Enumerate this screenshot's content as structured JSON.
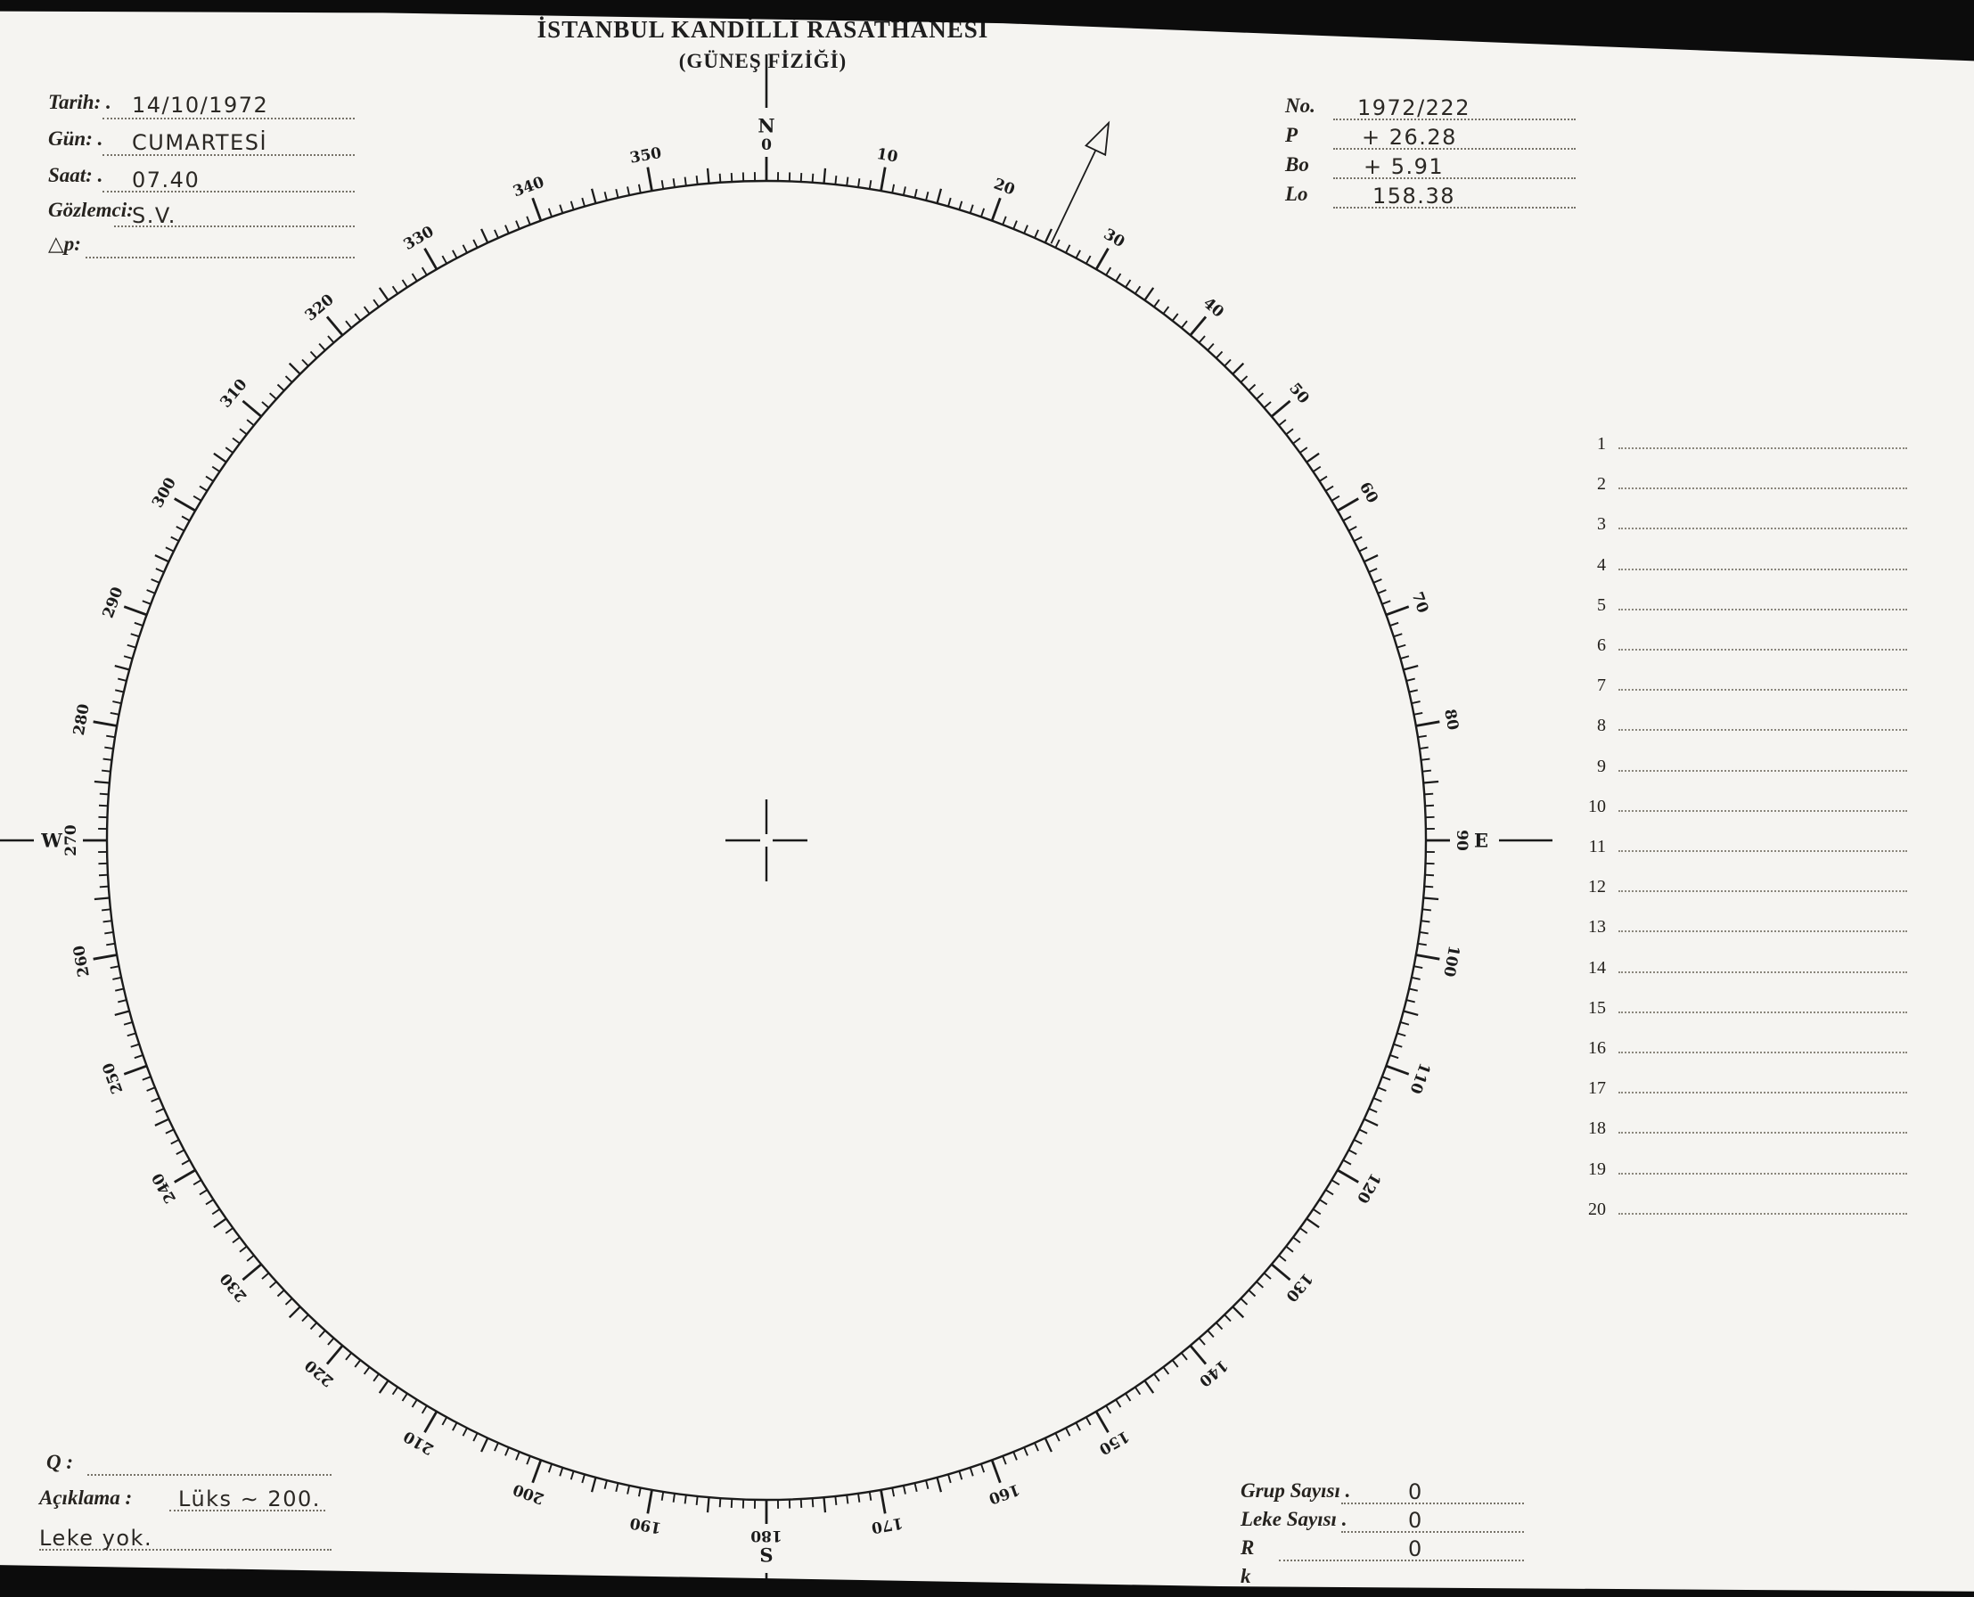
{
  "header": {
    "title": "İSTANBUL KANDİLLİ RASATHANESİ",
    "subtitle": "(GÜNEŞ FİZİĞİ)"
  },
  "fields_left": [
    {
      "label": "Tarih: .",
      "value": "14/10/1972"
    },
    {
      "label": "Gün: .",
      "value": "CUMARTESİ"
    },
    {
      "label": "Saat: .",
      "value": "07.40"
    },
    {
      "label": "Gözlemci:",
      "value": "S.V."
    },
    {
      "label": "△p:",
      "value": ""
    }
  ],
  "fields_right": [
    {
      "label": "No.",
      "value": "1972/222"
    },
    {
      "label": "P",
      "value": "+ 26.28"
    },
    {
      "label": "Bo",
      "value": "+  5.91"
    },
    {
      "label": "Lo",
      "value": "158.38"
    }
  ],
  "spot_list": {
    "numbers": [
      "1",
      "2",
      "3",
      "4",
      "5",
      "6",
      "7",
      "8",
      "9",
      "10",
      "11",
      "12",
      "13",
      "14",
      "15",
      "16",
      "17",
      "18",
      "19",
      "20"
    ]
  },
  "bottom_left": {
    "q_label": "Q :",
    "aciklama_label": "Açıklama :",
    "aciklama_value": "Lüks ∼ 200.",
    "note_value": "Leke yok."
  },
  "bottom_right": [
    {
      "label": "Grup Sayısı .",
      "value": "0"
    },
    {
      "label": "Leke Sayısı .",
      "value": "0"
    },
    {
      "label": "R",
      "value": "0"
    },
    {
      "label": "k",
      "value": ""
    }
  ],
  "dial": {
    "degree_labels": [
      "0",
      "10",
      "20",
      "30",
      "40",
      "50",
      "60",
      "70",
      "80",
      "90",
      "100",
      "110",
      "120",
      "130",
      "140",
      "150",
      "160",
      "170",
      "180",
      "190",
      "200",
      "210",
      "220",
      "230",
      "240",
      "250",
      "260",
      "270",
      "280",
      "290",
      "300",
      "310",
      "320",
      "330",
      "340",
      "350"
    ],
    "cardinals": [
      {
        "letter": "N",
        "deg": 0
      },
      {
        "letter": "E",
        "deg": 90
      },
      {
        "letter": "S",
        "deg": 180
      },
      {
        "letter": "W",
        "deg": 270
      }
    ],
    "arrow_bearing_deg": 25.5,
    "ink_color": "#1b1b1b"
  }
}
